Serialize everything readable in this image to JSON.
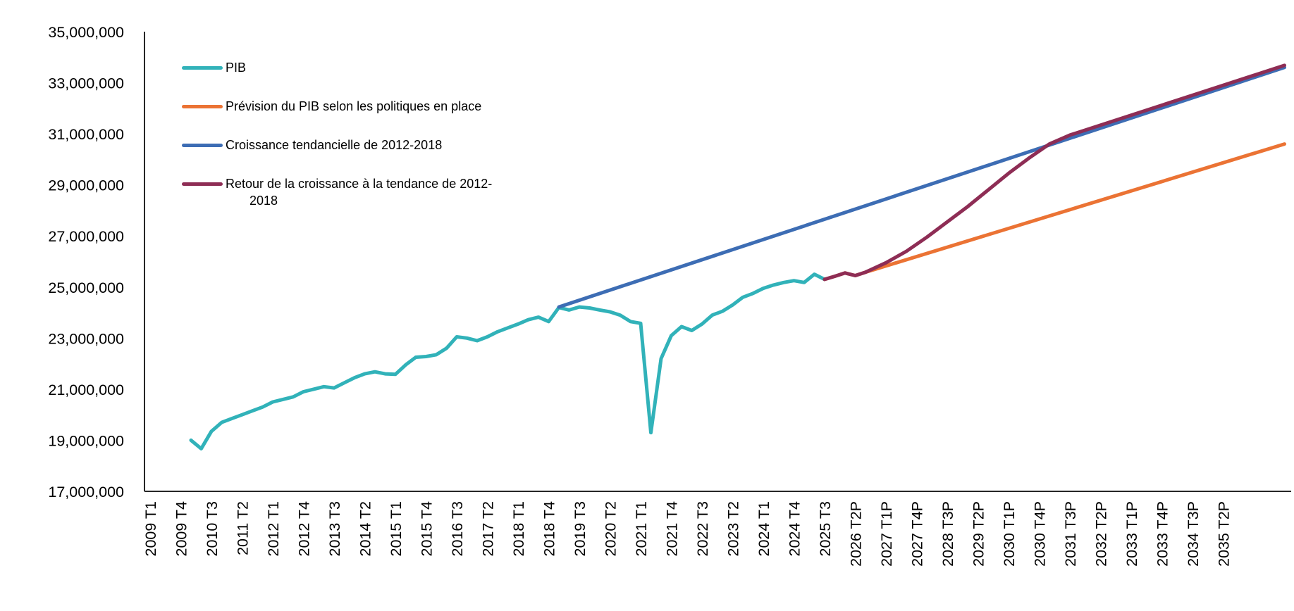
{
  "chart": {
    "background": "#ffffff",
    "axis_color": "#262626",
    "text_color": "#000000",
    "legend": [
      {
        "label": "PIB",
        "color": "#31b2b9"
      },
      {
        "label": "Prévision du PIB selon les politiques en place",
        "color": "#eb7334"
      },
      {
        "label": "Croissance tendancielle de 2012-2018",
        "color": "#3d6db4"
      },
      {
        "label": "Retour de la croissance à la tendance de 2012-2018",
        "color": "#8e2d55",
        "lines": [
          "Retour de la croissance à la tendance de 2012-",
          "2018"
        ]
      }
    ]
  },
  "chart_data": {
    "type": "line",
    "title": "",
    "xlabel": "",
    "ylabel": "",
    "grid": false,
    "legend_position": "top-left-inside",
    "y_axis": {
      "min": 17000000,
      "max": 35000000,
      "step": 2000000,
      "tick_labels": [
        "35,000,000",
        "33,000,000",
        "31,000,000",
        "29,000,000",
        "27,000,000",
        "25,000,000",
        "23,000,000",
        "21,000,000",
        "19,000,000",
        "17,000,000"
      ]
    },
    "x_axis": {
      "unit": "quarter",
      "first_quarter": "2009 T1",
      "last_quarter": "2036 T4",
      "label_interval_quarters": 3,
      "rotation_degrees": 90,
      "tick_labels": [
        "2009 T1",
        "2009 T4",
        "2010 T3",
        "2011 T2",
        "2012 T1",
        "2012 T4",
        "2013 T3",
        "2014 T2",
        "2015 T1",
        "2015 T4",
        "2016 T3",
        "2017 T2",
        "2018 T1",
        "2018 T4",
        "2019 T3",
        "2020 T2",
        "2021 T1",
        "2021 T4",
        "2022 T3",
        "2023 T2",
        "2024 T1",
        "2024 T4",
        "2025 T3",
        "2026 T2P",
        "2027 T1P",
        "2027 T4P",
        "2028 T3P",
        "2029 T2P",
        "2030 T1P",
        "2030 T4P",
        "2031 T3P",
        "2032 T2P",
        "2033 T1P",
        "2033 T4P",
        "2034 T3P",
        "2035 T2P"
      ]
    },
    "series": [
      {
        "name": "PIB",
        "color": "#31b2b9",
        "stroke_width": 5,
        "points": [
          [
            "2010 T1",
            19000000
          ],
          [
            "2010 T2",
            18670000
          ],
          [
            "2010 T3",
            19350000
          ],
          [
            "2010 T4",
            19700000
          ],
          [
            "2011 T1",
            19850000
          ],
          [
            "2011 T2",
            20000000
          ],
          [
            "2011 T3",
            20150000
          ],
          [
            "2011 T4",
            20300000
          ],
          [
            "2012 T1",
            20500000
          ],
          [
            "2012 T2",
            20600000
          ],
          [
            "2012 T3",
            20700000
          ],
          [
            "2012 T4",
            20900000
          ],
          [
            "2013 T1",
            21000000
          ],
          [
            "2013 T2",
            21100000
          ],
          [
            "2013 T3",
            21050000
          ],
          [
            "2013 T4",
            21250000
          ],
          [
            "2014 T1",
            21450000
          ],
          [
            "2014 T2",
            21600000
          ],
          [
            "2014 T3",
            21680000
          ],
          [
            "2014 T4",
            21600000
          ],
          [
            "2015 T1",
            21580000
          ],
          [
            "2015 T2",
            21950000
          ],
          [
            "2015 T3",
            22250000
          ],
          [
            "2015 T4",
            22280000
          ],
          [
            "2016 T1",
            22350000
          ],
          [
            "2016 T2",
            22600000
          ],
          [
            "2016 T3",
            23050000
          ],
          [
            "2016 T4",
            23000000
          ],
          [
            "2017 T1",
            22900000
          ],
          [
            "2017 T2",
            23050000
          ],
          [
            "2017 T3",
            23250000
          ],
          [
            "2017 T4",
            23400000
          ],
          [
            "2018 T1",
            23550000
          ],
          [
            "2018 T2",
            23720000
          ],
          [
            "2018 T3",
            23820000
          ],
          [
            "2018 T4",
            23650000
          ],
          [
            "2019 T1",
            24200000
          ],
          [
            "2019 T2",
            24100000
          ],
          [
            "2019 T3",
            24220000
          ],
          [
            "2019 T4",
            24180000
          ],
          [
            "2020 T1",
            24100000
          ],
          [
            "2020 T2",
            24030000
          ],
          [
            "2020 T3",
            23900000
          ],
          [
            "2020 T4",
            23650000
          ],
          [
            "2021 T1",
            23580000
          ],
          [
            "2021 T2",
            19300000
          ],
          [
            "2021 T3",
            22200000
          ],
          [
            "2021 T4",
            23100000
          ],
          [
            "2022 T1",
            23450000
          ],
          [
            "2022 T2",
            23300000
          ],
          [
            "2022 T3",
            23550000
          ],
          [
            "2022 T4",
            23900000
          ],
          [
            "2023 T1",
            24050000
          ],
          [
            "2023 T2",
            24300000
          ],
          [
            "2023 T3",
            24600000
          ],
          [
            "2023 T4",
            24750000
          ],
          [
            "2024 T1",
            24950000
          ],
          [
            "2024 T2",
            25080000
          ],
          [
            "2024 T3",
            25180000
          ],
          [
            "2024 T4",
            25250000
          ],
          [
            "2025 T1",
            25180000
          ],
          [
            "2025 T2",
            25500000
          ],
          [
            "2025 T3",
            25300000
          ]
        ]
      },
      {
        "name": "Prévision du PIB selon les politiques en place",
        "color": "#eb7334",
        "stroke_width": 5,
        "points": [
          [
            "2025 T3",
            25300000
          ],
          [
            "2025 T4",
            25420000
          ],
          [
            "2026 T1",
            25550000
          ],
          [
            "2026 T2",
            25450000
          ],
          [
            "2026 T3",
            25580000
          ],
          [
            "2036 T4",
            30600000
          ]
        ]
      },
      {
        "name": "Croissance tendancielle de 2012-2018",
        "color": "#3d6db4",
        "stroke_width": 5,
        "points": [
          [
            "2019 T1",
            24220000
          ],
          [
            "2036 T4",
            33600000
          ]
        ]
      },
      {
        "name": "Retour de la croissance à la tendance de 2012-2018",
        "color": "#8e2d55",
        "stroke_width": 5,
        "points": [
          [
            "2025 T3",
            25300000
          ],
          [
            "2025 T4",
            25420000
          ],
          [
            "2026 T1",
            25550000
          ],
          [
            "2026 T2",
            25450000
          ],
          [
            "2026 T3",
            25580000
          ],
          [
            "2027 T1",
            25950000
          ],
          [
            "2027 T3",
            26400000
          ],
          [
            "2028 T1",
            26950000
          ],
          [
            "2028 T3",
            27550000
          ],
          [
            "2029 T1",
            28150000
          ],
          [
            "2029 T3",
            28800000
          ],
          [
            "2030 T1",
            29450000
          ],
          [
            "2030 T3",
            30050000
          ],
          [
            "2031 T1",
            30600000
          ],
          [
            "2031 T3",
            30950000
          ],
          [
            "2036 T4",
            33680000
          ]
        ]
      }
    ]
  }
}
